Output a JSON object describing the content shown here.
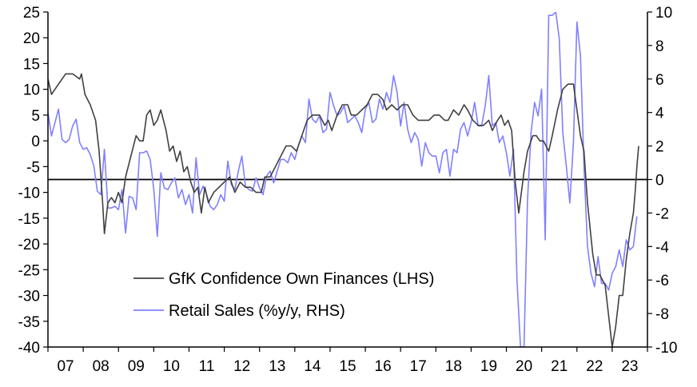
{
  "chart_data": {
    "type": "line",
    "title": "",
    "xlabel": "",
    "ylabel_left": "",
    "ylabel_right": "",
    "x_ticks": [
      "07",
      "08",
      "09",
      "10",
      "11",
      "12",
      "13",
      "14",
      "15",
      "16",
      "17",
      "18",
      "19",
      "20",
      "21",
      "22",
      "23"
    ],
    "x_range": [
      2007,
      2024
    ],
    "y_left": {
      "range": [
        -40,
        25
      ],
      "ticks": [
        25,
        20,
        15,
        10,
        5,
        0,
        -5,
        -10,
        -15,
        -20,
        -25,
        -30,
        -35,
        -40
      ]
    },
    "y_right": {
      "range": [
        -10,
        10
      ],
      "ticks": [
        10,
        8,
        6,
        4,
        2,
        0,
        -2,
        -4,
        -6,
        -8,
        -10
      ]
    },
    "zero_line_axis": "right",
    "legend": {
      "placement": "lower-left"
    },
    "series": [
      {
        "name": "GfK Confidence Own Finances (LHS)",
        "axis": "left",
        "color": "#404040",
        "points": [
          [
            2007.0,
            12
          ],
          [
            2007.1,
            9
          ],
          [
            2007.3,
            11
          ],
          [
            2007.5,
            13
          ],
          [
            2007.7,
            13
          ],
          [
            2007.9,
            12
          ],
          [
            2007.95,
            13
          ],
          [
            2008.05,
            9
          ],
          [
            2008.2,
            7
          ],
          [
            2008.35,
            4
          ],
          [
            2008.45,
            -2
          ],
          [
            2008.55,
            -12
          ],
          [
            2008.6,
            -18
          ],
          [
            2008.7,
            -12
          ],
          [
            2008.8,
            -11
          ],
          [
            2008.9,
            -12
          ],
          [
            2009.0,
            -10
          ],
          [
            2009.1,
            -12
          ],
          [
            2009.2,
            -7
          ],
          [
            2009.35,
            -3
          ],
          [
            2009.5,
            1
          ],
          [
            2009.6,
            0
          ],
          [
            2009.7,
            0
          ],
          [
            2009.8,
            5
          ],
          [
            2009.9,
            6
          ],
          [
            2010.0,
            3
          ],
          [
            2010.1,
            4
          ],
          [
            2010.2,
            6
          ],
          [
            2010.35,
            2
          ],
          [
            2010.45,
            -2
          ],
          [
            2010.55,
            -1
          ],
          [
            2010.65,
            -4
          ],
          [
            2010.75,
            -2
          ],
          [
            2010.85,
            -6
          ],
          [
            2010.95,
            -5
          ],
          [
            2011.05,
            -8
          ],
          [
            2011.15,
            -10
          ],
          [
            2011.25,
            -9
          ],
          [
            2011.35,
            -14
          ],
          [
            2011.45,
            -9
          ],
          [
            2011.55,
            -12
          ],
          [
            2011.7,
            -10
          ],
          [
            2011.85,
            -9
          ],
          [
            2012.0,
            -8
          ],
          [
            2012.15,
            -7
          ],
          [
            2012.3,
            -10
          ],
          [
            2012.45,
            -8
          ],
          [
            2012.6,
            -9
          ],
          [
            2012.75,
            -9
          ],
          [
            2012.9,
            -10
          ],
          [
            2013.05,
            -10
          ],
          [
            2013.15,
            -7
          ],
          [
            2013.3,
            -7
          ],
          [
            2013.45,
            -5
          ],
          [
            2013.6,
            -3
          ],
          [
            2013.75,
            -1
          ],
          [
            2013.9,
            -1
          ],
          [
            2014.05,
            -2
          ],
          [
            2014.2,
            1
          ],
          [
            2014.35,
            4
          ],
          [
            2014.5,
            5
          ],
          [
            2014.6,
            5
          ],
          [
            2014.7,
            5
          ],
          [
            2014.85,
            3
          ],
          [
            2014.95,
            4
          ],
          [
            2015.05,
            2
          ],
          [
            2015.2,
            5
          ],
          [
            2015.35,
            7
          ],
          [
            2015.5,
            7
          ],
          [
            2015.6,
            5
          ],
          [
            2015.75,
            5
          ],
          [
            2015.9,
            6
          ],
          [
            2016.05,
            7
          ],
          [
            2016.2,
            9
          ],
          [
            2016.35,
            9
          ],
          [
            2016.5,
            8
          ],
          [
            2016.6,
            6
          ],
          [
            2016.75,
            7
          ],
          [
            2016.9,
            6
          ],
          [
            2017.05,
            7
          ],
          [
            2017.2,
            7
          ],
          [
            2017.35,
            5
          ],
          [
            2017.5,
            4
          ],
          [
            2017.65,
            4
          ],
          [
            2017.8,
            4
          ],
          [
            2017.95,
            5
          ],
          [
            2018.1,
            5
          ],
          [
            2018.25,
            4
          ],
          [
            2018.35,
            4
          ],
          [
            2018.5,
            6
          ],
          [
            2018.65,
            5
          ],
          [
            2018.8,
            7
          ],
          [
            2018.9,
            6
          ],
          [
            2019.05,
            4
          ],
          [
            2019.2,
            3
          ],
          [
            2019.35,
            3
          ],
          [
            2019.5,
            4
          ],
          [
            2019.6,
            2
          ],
          [
            2019.75,
            4
          ],
          [
            2019.85,
            5
          ],
          [
            2019.95,
            3
          ],
          [
            2020.05,
            4
          ],
          [
            2020.15,
            2
          ],
          [
            2020.25,
            -8
          ],
          [
            2020.35,
            -14
          ],
          [
            2020.5,
            -6
          ],
          [
            2020.6,
            -2
          ],
          [
            2020.75,
            1
          ],
          [
            2020.85,
            1
          ],
          [
            2020.95,
            0
          ],
          [
            2021.05,
            0
          ],
          [
            2021.2,
            -2
          ],
          [
            2021.3,
            1
          ],
          [
            2021.45,
            6
          ],
          [
            2021.6,
            10
          ],
          [
            2021.75,
            11
          ],
          [
            2021.9,
            11
          ],
          [
            2022.0,
            6
          ],
          [
            2022.1,
            1
          ],
          [
            2022.2,
            -2
          ],
          [
            2022.3,
            -12
          ],
          [
            2022.45,
            -22
          ],
          [
            2022.55,
            -26
          ],
          [
            2022.65,
            -26
          ],
          [
            2022.8,
            -28
          ],
          [
            2022.9,
            -34
          ],
          [
            2023.0,
            -40
          ],
          [
            2023.1,
            -36
          ],
          [
            2023.2,
            -30
          ],
          [
            2023.3,
            -30
          ],
          [
            2023.4,
            -23
          ],
          [
            2023.5,
            -18
          ],
          [
            2023.6,
            -14
          ],
          [
            2023.65,
            -10
          ],
          [
            2023.7,
            -5
          ],
          [
            2023.75,
            -1
          ]
        ]
      },
      {
        "name": "Retail Sales (%y/y, RHS)",
        "axis": "right",
        "color": "#8080ff",
        "points": [
          [
            2007.0,
            4
          ],
          [
            2007.1,
            2.6
          ],
          [
            2007.2,
            3.4
          ],
          [
            2007.3,
            4.2
          ],
          [
            2007.4,
            2.4
          ],
          [
            2007.5,
            2.2
          ],
          [
            2007.6,
            2.4
          ],
          [
            2007.7,
            3.2
          ],
          [
            2007.8,
            3.6
          ],
          [
            2007.9,
            2.2
          ],
          [
            2008.0,
            1.8
          ],
          [
            2008.1,
            1.9
          ],
          [
            2008.2,
            1.5
          ],
          [
            2008.3,
            0.8
          ],
          [
            2008.4,
            -0.7
          ],
          [
            2008.5,
            -0.9
          ],
          [
            2008.6,
            1.8
          ],
          [
            2008.7,
            -1.7
          ],
          [
            2008.8,
            -1.7
          ],
          [
            2008.9,
            -1.6
          ],
          [
            2009.0,
            -1.8
          ],
          [
            2009.1,
            -0.6
          ],
          [
            2009.2,
            -3.2
          ],
          [
            2009.3,
            -1.0
          ],
          [
            2009.4,
            -1.1
          ],
          [
            2009.5,
            -1.8
          ],
          [
            2009.6,
            1.6
          ],
          [
            2009.7,
            1.6
          ],
          [
            2009.8,
            1.7
          ],
          [
            2009.9,
            1.2
          ],
          [
            2010.0,
            -0.6
          ],
          [
            2010.1,
            -3.4
          ],
          [
            2010.2,
            0.4
          ],
          [
            2010.3,
            -0.5
          ],
          [
            2010.4,
            -0.6
          ],
          [
            2010.5,
            -0.2
          ],
          [
            2010.6,
            0.1
          ],
          [
            2010.7,
            -1.1
          ],
          [
            2010.8,
            -0.6
          ],
          [
            2010.9,
            -1.5
          ],
          [
            2011.0,
            -0.9
          ],
          [
            2011.1,
            -2.0
          ],
          [
            2011.2,
            1.3
          ],
          [
            2011.3,
            -0.9
          ],
          [
            2011.4,
            -0.4
          ],
          [
            2011.5,
            -0.9
          ],
          [
            2011.6,
            -1.6
          ],
          [
            2011.7,
            -1.8
          ],
          [
            2011.8,
            -1.5
          ],
          [
            2011.9,
            -0.9
          ],
          [
            2012.0,
            -1.3
          ],
          [
            2012.1,
            1.1
          ],
          [
            2012.2,
            -0.3
          ],
          [
            2012.3,
            -0.6
          ],
          [
            2012.4,
            0.5
          ],
          [
            2012.5,
            1.4
          ],
          [
            2012.6,
            -0.4
          ],
          [
            2012.7,
            -0.6
          ],
          [
            2012.8,
            -0.7
          ],
          [
            2012.9,
            0.1
          ],
          [
            2013.0,
            -0.5
          ],
          [
            2013.1,
            -0.9
          ],
          [
            2013.2,
            0.2
          ],
          [
            2013.3,
            0.5
          ],
          [
            2013.4,
            -0.2
          ],
          [
            2013.5,
            0.5
          ],
          [
            2013.6,
            1.2
          ],
          [
            2013.7,
            1.2
          ],
          [
            2013.8,
            1.0
          ],
          [
            2013.9,
            1.6
          ],
          [
            2014.0,
            1.2
          ],
          [
            2014.1,
            2.0
          ],
          [
            2014.2,
            2.6
          ],
          [
            2014.3,
            2.2
          ],
          [
            2014.4,
            4.8
          ],
          [
            2014.5,
            3.6
          ],
          [
            2014.6,
            3.4
          ],
          [
            2014.7,
            3.8
          ],
          [
            2014.8,
            2.8
          ],
          [
            2014.9,
            3.0
          ],
          [
            2015.0,
            5.2
          ],
          [
            2015.1,
            4.4
          ],
          [
            2015.2,
            3.8
          ],
          [
            2015.3,
            4.0
          ],
          [
            2015.4,
            4.4
          ],
          [
            2015.5,
            3.4
          ],
          [
            2015.6,
            3.6
          ],
          [
            2015.7,
            3.8
          ],
          [
            2015.8,
            3.4
          ],
          [
            2015.9,
            2.8
          ],
          [
            2016.0,
            4.2
          ],
          [
            2016.1,
            4.6
          ],
          [
            2016.2,
            3.4
          ],
          [
            2016.3,
            3.6
          ],
          [
            2016.4,
            4.8
          ],
          [
            2016.5,
            4.2
          ],
          [
            2016.6,
            5.2
          ],
          [
            2016.7,
            4.6
          ],
          [
            2016.8,
            6.2
          ],
          [
            2016.9,
            5.2
          ],
          [
            2017.0,
            3.2
          ],
          [
            2017.1,
            4.6
          ],
          [
            2017.2,
            3.0
          ],
          [
            2017.3,
            2.2
          ],
          [
            2017.4,
            2.8
          ],
          [
            2017.5,
            2.4
          ],
          [
            2017.6,
            0.8
          ],
          [
            2017.7,
            2.2
          ],
          [
            2017.8,
            1.6
          ],
          [
            2017.9,
            1.4
          ],
          [
            2018.0,
            1.4
          ],
          [
            2018.1,
            0.4
          ],
          [
            2018.2,
            1.6
          ],
          [
            2018.3,
            1.8
          ],
          [
            2018.4,
            0.2
          ],
          [
            2018.5,
            1.8
          ],
          [
            2018.6,
            1.6
          ],
          [
            2018.7,
            3.0
          ],
          [
            2018.8,
            3.4
          ],
          [
            2018.9,
            2.6
          ],
          [
            2019.0,
            3.4
          ],
          [
            2019.1,
            4.6
          ],
          [
            2019.2,
            3.2
          ],
          [
            2019.3,
            3.2
          ],
          [
            2019.4,
            4.4
          ],
          [
            2019.5,
            6.2
          ],
          [
            2019.6,
            3.2
          ],
          [
            2019.7,
            3.4
          ],
          [
            2019.8,
            2.2
          ],
          [
            2019.9,
            2.6
          ],
          [
            2020.0,
            1.6
          ],
          [
            2020.1,
            0.2
          ],
          [
            2020.2,
            1.8
          ],
          [
            2020.3,
            -6.0
          ],
          [
            2020.4,
            -10.0
          ],
          [
            2020.5,
            -10.0
          ],
          [
            2020.6,
            -1.2
          ],
          [
            2020.7,
            2.8
          ],
          [
            2020.8,
            4.6
          ],
          [
            2020.9,
            3.8
          ],
          [
            2021.0,
            5.4
          ],
          [
            2021.1,
            -3.6
          ],
          [
            2021.2,
            9.8
          ],
          [
            2021.3,
            9.8
          ],
          [
            2021.4,
            10.0
          ],
          [
            2021.5,
            8.4
          ],
          [
            2021.6,
            2.8
          ],
          [
            2021.7,
            0.8
          ],
          [
            2021.8,
            -1.4
          ],
          [
            2021.9,
            2.2
          ],
          [
            2022.0,
            9.4
          ],
          [
            2022.1,
            7.4
          ],
          [
            2022.2,
            0.8
          ],
          [
            2022.3,
            -4.0
          ],
          [
            2022.4,
            -5.6
          ],
          [
            2022.5,
            -6.4
          ],
          [
            2022.6,
            -4.6
          ],
          [
            2022.7,
            -6.2
          ],
          [
            2022.8,
            -6.2
          ],
          [
            2022.9,
            -6.6
          ],
          [
            2023.0,
            -5.6
          ],
          [
            2023.1,
            -5.2
          ],
          [
            2023.2,
            -4.2
          ],
          [
            2023.3,
            -5.2
          ],
          [
            2023.4,
            -3.6
          ],
          [
            2023.5,
            -4.2
          ],
          [
            2023.6,
            -4.0
          ],
          [
            2023.7,
            -2.2
          ]
        ]
      }
    ]
  }
}
